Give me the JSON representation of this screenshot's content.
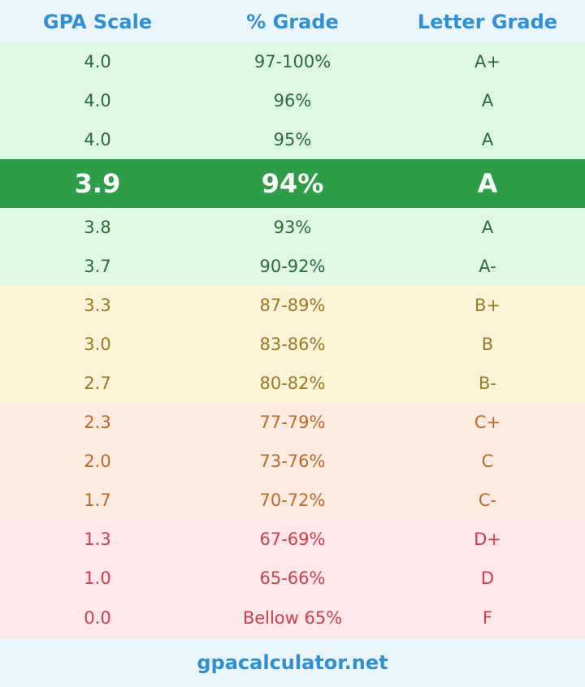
{
  "header": {
    "col1": "GPA Scale",
    "col2": "% Grade",
    "col3": "Letter Grade"
  },
  "rows": [
    {
      "gpa": "4.0",
      "percent": "97-100%",
      "letter": "A+"
    },
    {
      "gpa": "4.0",
      "percent": "96%",
      "letter": "A"
    },
    {
      "gpa": "4.0",
      "percent": "95%",
      "letter": "A"
    },
    {
      "gpa": "3.9",
      "percent": "94%",
      "letter": "A"
    },
    {
      "gpa": "3.8",
      "percent": "93%",
      "letter": "A"
    },
    {
      "gpa": "3.7",
      "percent": "90-92%",
      "letter": "A-"
    },
    {
      "gpa": "3.3",
      "percent": "87-89%",
      "letter": "B+"
    },
    {
      "gpa": "3.0",
      "percent": "83-86%",
      "letter": "B"
    },
    {
      "gpa": "2.7",
      "percent": "80-82%",
      "letter": "B-"
    },
    {
      "gpa": "2.3",
      "percent": "77-79%",
      "letter": "C+"
    },
    {
      "gpa": "2.0",
      "percent": "73-76%",
      "letter": "C"
    },
    {
      "gpa": "1.7",
      "percent": "70-72%",
      "letter": "C-"
    },
    {
      "gpa": "1.3",
      "percent": "67-69%",
      "letter": "D+"
    },
    {
      "gpa": "1.0",
      "percent": "65-66%",
      "letter": "D"
    },
    {
      "gpa": "0.0",
      "percent": "Bellow 65%",
      "letter": "F"
    }
  ],
  "footer": {
    "site": "gpacalculator.net"
  },
  "colors": {
    "header_text": "#2f8fd9",
    "highlight_bg": "#2c9e47",
    "green_band": "#dff8e4",
    "yellow_band": "#fbf3d8",
    "orange_band": "#fdebe2",
    "red_band": "#fde7ea"
  }
}
